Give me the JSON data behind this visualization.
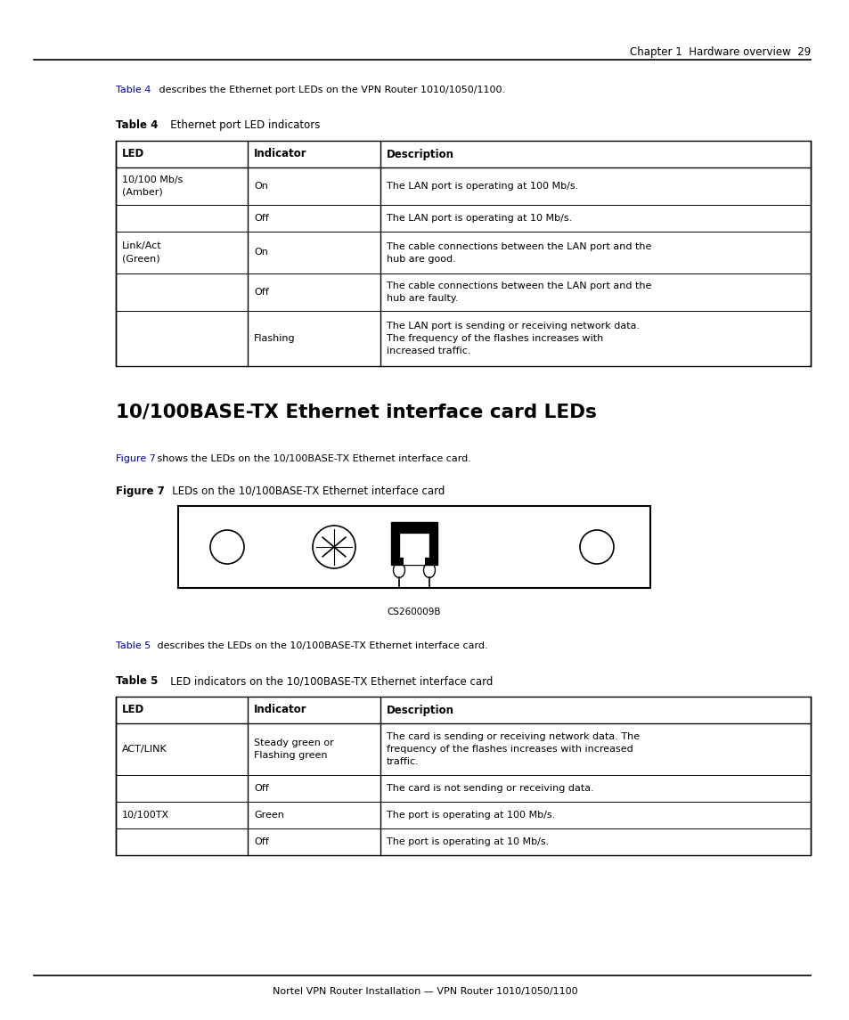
{
  "page_header": "Chapter 1  Hardware overview  29",
  "intro_link_4": "Table 4",
  "intro_rest_4": " describes the Ethernet port LEDs on the VPN Router 1010/1050/1100.",
  "table4_bold": "Table 4",
  "table4_rest": "   Ethernet port LED indicators",
  "table4_headers": [
    "LED",
    "Indicator",
    "Description"
  ],
  "table4_rows": [
    [
      "10/100 Mb/s\n(Amber)",
      "On",
      "The LAN port is operating at 100 Mb/s."
    ],
    [
      "",
      "Off",
      "The LAN port is operating at 10 Mb/s."
    ],
    [
      "Link/Act\n(Green)",
      "On",
      "The cable connections between the LAN port and the\nhub are good."
    ],
    [
      "",
      "Off",
      "The cable connections between the LAN port and the\nhub are faulty."
    ],
    [
      "",
      "Flashing",
      "The LAN port is sending or receiving network data.\nThe frequency of the flashes increases with\nincreased traffic."
    ]
  ],
  "section_heading": "10/100BASE-TX Ethernet interface card LEDs",
  "intro_link_7": "Figure 7",
  "intro_rest_7": " shows the LEDs on the 10/100BASE-TX Ethernet interface card.",
  "fig7_bold": "Figure 7",
  "fig7_rest": "   LEDs on the 10/100BASE-TX Ethernet interface card",
  "figure_caption": "CS260009B",
  "intro_link_5": "Table 5",
  "intro_rest_5": " describes the LEDs on the 10/100BASE-TX Ethernet interface card.",
  "table5_bold": "Table 5",
  "table5_rest": "   LED indicators on the 10/100BASE-TX Ethernet interface card",
  "table5_headers": [
    "LED",
    "Indicator",
    "Description"
  ],
  "table5_rows": [
    [
      "ACT/LINK",
      "Steady green or\nFlashing green",
      "The card is sending or receiving network data. The\nfrequency of the flashes increases with increased\ntraffic."
    ],
    [
      "",
      "Off",
      "The card is not sending or receiving data."
    ],
    [
      "10/100TX",
      "Green",
      "The port is operating at 100 Mb/s."
    ],
    [
      "",
      "Off",
      "The port is operating at 10 Mb/s."
    ]
  ],
  "footer_text": "Nortel VPN Router Installation — VPN Router 1010/1050/1100",
  "link_color": "#0000BB",
  "text_color": "#000000",
  "bg_color": "#FFFFFF"
}
